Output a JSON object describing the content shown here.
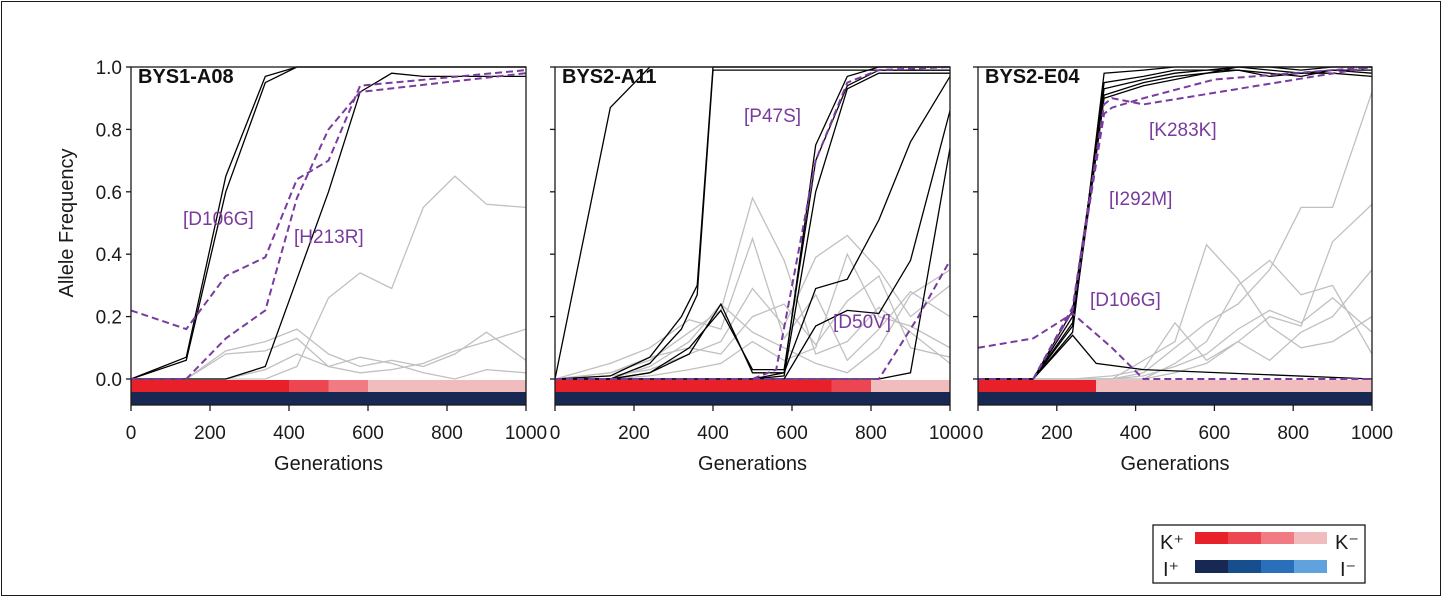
{
  "chart_data": [
    {
      "type": "line",
      "title": "BYS1-A08",
      "xlabel": "Generations",
      "ylabel": "Allele Frequency",
      "xlim": [
        0,
        1000
      ],
      "ylim": [
        0,
        1.0
      ],
      "x_ticks": [
        "0",
        "200",
        "400",
        "600",
        "800",
        "1000"
      ],
      "y_ticks": [
        "0.0",
        "0.2",
        "0.4",
        "0.6",
        "0.8",
        "1.0"
      ],
      "highlighted": [
        {
          "name": "[D106G]",
          "x": [
            0,
            140,
            240,
            340,
            420,
            500,
            580,
            1000
          ],
          "y": [
            0.22,
            0.16,
            0.33,
            0.39,
            0.64,
            0.7,
            0.94,
            0.99
          ]
        },
        {
          "name": "[H213R]",
          "x": [
            0,
            140,
            240,
            340,
            420,
            500,
            580,
            1000
          ],
          "y": [
            0.0,
            0.0,
            0.13,
            0.22,
            0.58,
            0.8,
            0.92,
            0.98
          ]
        }
      ],
      "fixed_lines": [
        {
          "x": [
            0,
            140,
            240,
            340,
            420,
            500,
            580,
            660,
            1000
          ],
          "y": [
            0.0,
            0.07,
            0.65,
            0.97,
            1.0,
            1.0,
            1.0,
            1.0,
            1.0
          ]
        },
        {
          "x": [
            0,
            140,
            240,
            340,
            420,
            500,
            580,
            660,
            1000
          ],
          "y": [
            0.0,
            0.06,
            0.6,
            0.95,
            1.0,
            1.0,
            1.0,
            1.0,
            1.0
          ]
        },
        {
          "x": [
            0,
            140,
            240,
            340,
            420,
            500,
            580,
            660,
            740,
            1000
          ],
          "y": [
            0.0,
            0.0,
            0.0,
            0.04,
            0.32,
            0.6,
            0.92,
            0.98,
            0.97,
            0.97
          ]
        }
      ],
      "background_lines": [
        {
          "x": [
            0,
            140,
            240,
            340,
            420,
            500,
            580,
            660,
            740,
            820,
            900,
            1000
          ],
          "y": [
            0.0,
            0.0,
            0.0,
            0.0,
            0.04,
            0.26,
            0.34,
            0.29,
            0.55,
            0.65,
            0.56,
            0.55
          ]
        },
        {
          "x": [
            0,
            140,
            240,
            340,
            420,
            500,
            580,
            660,
            740,
            820,
            900,
            1000
          ],
          "y": [
            0.0,
            0.0,
            0.09,
            0.12,
            0.16,
            0.08,
            0.04,
            0.06,
            0.04,
            0.08,
            0.15,
            0.06
          ]
        },
        {
          "x": [
            0,
            140,
            240,
            340,
            420,
            500,
            580,
            660,
            740,
            820,
            900,
            1000
          ],
          "y": [
            0.0,
            0.0,
            0.08,
            0.09,
            0.13,
            0.04,
            0.02,
            0.03,
            0.05,
            0.09,
            0.12,
            0.16
          ]
        },
        {
          "x": [
            0,
            140,
            240,
            340,
            420,
            500,
            580,
            660,
            740,
            820,
            900,
            1000
          ],
          "y": [
            0.0,
            0.0,
            0.0,
            0.03,
            0.08,
            0.04,
            0.07,
            0.05,
            0.02,
            0.0,
            0.03,
            0.02
          ]
        }
      ],
      "environment_bar": {
        "x": [
          0,
          400,
          500,
          600,
          1000
        ],
        "k_level": [
          0,
          1,
          2,
          3
        ],
        "i_level": [
          0
        ]
      }
    },
    {
      "type": "line",
      "title": "BYS2-A11",
      "xlabel": "Generations",
      "ylabel": "",
      "xlim": [
        0,
        1000
      ],
      "ylim": [
        0,
        1.0
      ],
      "x_ticks": [
        "0",
        "200",
        "400",
        "600",
        "800",
        "1000"
      ],
      "y_ticks": [],
      "highlighted": [
        {
          "name": "[P47S]",
          "x": [
            0,
            340,
            500,
            560,
            660,
            740,
            820,
            1000
          ],
          "y": [
            0.0,
            0.0,
            0.0,
            0.03,
            0.7,
            0.95,
            0.99,
            1.0
          ]
        },
        {
          "name": "[D50V]",
          "x": [
            0,
            600,
            820,
            920,
            1000
          ],
          "y": [
            0.0,
            0.0,
            0.0,
            0.2,
            0.38
          ]
        }
      ],
      "fixed_lines": [
        {
          "x": [
            0,
            140,
            240,
            1000
          ],
          "y": [
            0.0,
            0.87,
            1.0,
            1.0
          ]
        },
        {
          "x": [
            0,
            140,
            240,
            320,
            360,
            400,
            1000
          ],
          "y": [
            0.0,
            0.01,
            0.07,
            0.2,
            0.3,
            1.0,
            1.0
          ]
        },
        {
          "x": [
            0,
            140,
            240,
            320,
            360,
            400,
            1000
          ],
          "y": [
            0.0,
            0.0,
            0.05,
            0.16,
            0.27,
            0.99,
            0.99
          ]
        },
        {
          "x": [
            0,
            140,
            240,
            340,
            420,
            500,
            580,
            660,
            740,
            820,
            1000
          ],
          "y": [
            0.0,
            0.0,
            0.02,
            0.08,
            0.24,
            0.02,
            0.02,
            0.75,
            0.97,
            1.0,
            1.0
          ]
        },
        {
          "x": [
            0,
            140,
            240,
            340,
            420,
            500,
            580,
            660,
            740,
            820,
            1000
          ],
          "y": [
            0.0,
            0.0,
            0.02,
            0.1,
            0.22,
            0.03,
            0.03,
            0.7,
            0.94,
            0.99,
            0.99
          ]
        },
        {
          "x": [
            0,
            420,
            500,
            580,
            660,
            740,
            820,
            1000
          ],
          "y": [
            0.0,
            0.0,
            0.0,
            0.01,
            0.6,
            0.93,
            0.98,
            0.98
          ]
        },
        {
          "x": [
            0,
            500,
            580,
            660,
            740,
            820,
            900,
            1000
          ],
          "y": [
            0.0,
            0.0,
            0.02,
            0.29,
            0.32,
            0.51,
            0.76,
            0.97
          ]
        },
        {
          "x": [
            0,
            580,
            660,
            740,
            820,
            900,
            1000
          ],
          "y": [
            0.0,
            0.0,
            0.17,
            0.22,
            0.21,
            0.38,
            0.86
          ]
        },
        {
          "x": [
            0,
            740,
            820,
            900,
            1000
          ],
          "y": [
            0.0,
            0.0,
            0.0,
            0.02,
            0.74
          ]
        }
      ],
      "background_lines": [
        {
          "x": [
            0,
            140,
            240,
            340,
            420,
            500,
            580,
            660,
            740,
            820,
            900,
            1000
          ],
          "y": [
            0.0,
            0.02,
            0.06,
            0.15,
            0.22,
            0.58,
            0.38,
            0.08,
            0.12,
            0.23,
            0.15,
            0.05
          ]
        },
        {
          "x": [
            0,
            140,
            240,
            340,
            420,
            500,
            580,
            660,
            740,
            820,
            900,
            1000
          ],
          "y": [
            0.0,
            0.05,
            0.1,
            0.19,
            0.16,
            0.45,
            0.13,
            0.27,
            0.06,
            0.16,
            0.28,
            0.2
          ]
        },
        {
          "x": [
            0,
            140,
            240,
            340,
            420,
            500,
            580,
            660,
            740,
            820,
            900,
            1000
          ],
          "y": [
            0.0,
            0.01,
            0.03,
            0.08,
            0.12,
            0.29,
            0.17,
            0.39,
            0.46,
            0.35,
            0.2,
            0.3
          ]
        },
        {
          "x": [
            0,
            140,
            240,
            340,
            420,
            500,
            580,
            660,
            740,
            820,
            900,
            1000
          ],
          "y": [
            0.0,
            0.0,
            0.04,
            0.12,
            0.24,
            0.15,
            0.1,
            0.05,
            0.02,
            0.1,
            0.27,
            0.35
          ]
        },
        {
          "x": [
            0,
            140,
            240,
            340,
            420,
            500,
            580,
            660,
            740,
            820,
            900,
            1000
          ],
          "y": [
            0.0,
            0.02,
            0.07,
            0.1,
            0.08,
            0.2,
            0.24,
            0.11,
            0.25,
            0.33,
            0.1,
            0.07
          ]
        },
        {
          "x": [
            0,
            140,
            240,
            340,
            420,
            500,
            580,
            660,
            740,
            820,
            900,
            1000
          ],
          "y": [
            0.0,
            0.0,
            0.01,
            0.03,
            0.05,
            0.12,
            0.06,
            0.1,
            0.4,
            0.2,
            0.17,
            0.1
          ]
        }
      ],
      "environment_bar": {
        "x": [
          0,
          700,
          800,
          1000
        ],
        "k_level": [
          0,
          1,
          3
        ],
        "i_level": [
          0
        ]
      }
    },
    {
      "type": "line",
      "title": "BYS2-E04",
      "xlabel": "Generations",
      "ylabel": "",
      "xlim": [
        0,
        1000
      ],
      "ylim": [
        0,
        1.0
      ],
      "x_ticks": [
        "0",
        "200",
        "400",
        "600",
        "800",
        "1000"
      ],
      "y_ticks": [],
      "highlighted": [
        {
          "name": "[K283K]",
          "x": [
            0,
            140,
            240,
            320,
            340,
            420,
            1000
          ],
          "y": [
            0.0,
            0.0,
            0.23,
            0.88,
            0.9,
            0.88,
            1.0
          ]
        },
        {
          "name": "[I292M]",
          "x": [
            0,
            140,
            240,
            320,
            340,
            420,
            600,
            1000
          ],
          "y": [
            0.0,
            0.0,
            0.22,
            0.85,
            0.87,
            0.9,
            0.96,
            1.0
          ]
        },
        {
          "name": "[D106G]",
          "x": [
            0,
            140,
            240,
            340,
            420,
            1000
          ],
          "y": [
            0.1,
            0.13,
            0.21,
            0.1,
            0.0,
            0.0
          ]
        }
      ],
      "fixed_lines": [
        {
          "x": [
            0,
            140,
            240,
            320,
            420,
            500,
            580,
            660,
            740,
            820,
            900,
            1000
          ],
          "y": [
            0.0,
            0.0,
            0.15,
            0.98,
            0.99,
            1.0,
            1.0,
            1.0,
            1.0,
            1.0,
            1.0,
            1.0
          ]
        },
        {
          "x": [
            0,
            140,
            240,
            320,
            420,
            500,
            580,
            660,
            740,
            820,
            900,
            1000
          ],
          "y": [
            0.0,
            0.0,
            0.18,
            0.95,
            0.97,
            0.99,
            0.99,
            1.0,
            0.99,
            0.98,
            0.99,
            0.99
          ]
        },
        {
          "x": [
            0,
            140,
            240,
            320,
            420,
            500,
            580,
            660,
            740,
            820,
            900,
            1000
          ],
          "y": [
            0.0,
            0.0,
            0.2,
            0.93,
            0.96,
            0.98,
            0.99,
            0.99,
            0.98,
            0.97,
            0.99,
            0.98
          ]
        },
        {
          "x": [
            0,
            140,
            240,
            320,
            420,
            500,
            580,
            660,
            740,
            820,
            900,
            1000
          ],
          "y": [
            0.0,
            0.0,
            0.22,
            0.91,
            0.95,
            0.97,
            0.98,
            0.99,
            0.97,
            0.98,
            0.98,
            0.97
          ]
        },
        {
          "x": [
            0,
            140,
            240,
            320,
            420,
            500,
            580,
            660,
            740,
            820,
            900,
            1000
          ],
          "y": [
            0.0,
            0.0,
            0.17,
            0.9,
            0.94,
            0.96,
            0.98,
            1.0,
            1.0,
            0.99,
            1.0,
            1.0
          ]
        },
        {
          "x": [
            0,
            140,
            240,
            300,
            420,
            1000
          ],
          "y": [
            0.0,
            0.0,
            0.14,
            0.05,
            0.03,
            0.0
          ]
        }
      ],
      "background_lines": [
        {
          "x": [
            0,
            240,
            340,
            420,
            500,
            580,
            660,
            740,
            820,
            900,
            1000
          ],
          "y": [
            0.0,
            0.0,
            0.0,
            0.02,
            0.1,
            0.18,
            0.24,
            0.35,
            0.55,
            0.55,
            0.92
          ]
        },
        {
          "x": [
            0,
            240,
            340,
            420,
            500,
            580,
            660,
            740,
            820,
            900,
            1000
          ],
          "y": [
            0.0,
            0.0,
            0.0,
            0.0,
            0.05,
            0.12,
            0.3,
            0.38,
            0.27,
            0.3,
            0.08
          ]
        },
        {
          "x": [
            0,
            240,
            340,
            420,
            500,
            580,
            660,
            740,
            820,
            900,
            1000
          ],
          "y": [
            0.0,
            0.0,
            0.01,
            0.03,
            0.18,
            0.06,
            0.12,
            0.2,
            0.17,
            0.44,
            0.56
          ]
        },
        {
          "x": [
            0,
            240,
            340,
            420,
            500,
            580,
            660,
            740,
            820,
            900,
            1000
          ],
          "y": [
            0.0,
            0.0,
            0.0,
            0.06,
            0.12,
            0.43,
            0.32,
            0.17,
            0.1,
            0.12,
            0.2
          ]
        },
        {
          "x": [
            0,
            240,
            340,
            420,
            500,
            580,
            660,
            740,
            820,
            900,
            1000
          ],
          "y": [
            0.0,
            0.0,
            0.0,
            0.01,
            0.04,
            0.08,
            0.16,
            0.22,
            0.18,
            0.26,
            0.15
          ]
        },
        {
          "x": [
            0,
            240,
            340,
            420,
            500,
            580,
            660,
            740,
            820,
            900,
            1000
          ],
          "y": [
            0.0,
            0.0,
            0.0,
            0.0,
            0.02,
            0.05,
            0.12,
            0.06,
            0.15,
            0.2,
            0.35
          ]
        }
      ],
      "environment_bar": {
        "x": [
          0,
          300,
          1000
        ],
        "k_level": [
          0,
          3
        ],
        "i_level": [
          0
        ]
      }
    }
  ],
  "legend": {
    "k_plus": "K⁺",
    "k_minus": "K⁻",
    "i_plus": "I⁺",
    "i_minus": "I⁻",
    "k_colors": [
      "#e8202a",
      "#ec4650",
      "#f07b82",
      "#f0bcbe"
    ],
    "i_colors": [
      "#172853",
      "#174f8e",
      "#2a6fba",
      "#5fa2de"
    ]
  },
  "colors": {
    "fixed": "#000000",
    "background": "#c0c0c0",
    "highlight": "#7a3b9e",
    "axis": "#1a1a1a"
  }
}
